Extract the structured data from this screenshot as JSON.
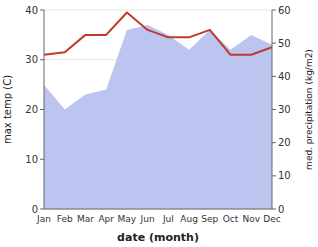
{
  "chart_data": {
    "type": "line",
    "xlabel": "date (month)",
    "ylabel": "max temp (C)",
    "y2label": "med. precipitation (kg/m2)",
    "categories": [
      "Jan",
      "Feb",
      "Mar",
      "Apr",
      "May",
      "Jun",
      "Jul",
      "Aug",
      "Sep",
      "Oct",
      "Nov",
      "Dec"
    ],
    "series": [
      {
        "type": "area",
        "axis": "y2",
        "color": "#bcc5f0",
        "values": [
          37.5,
          30,
          34.5,
          36,
          54,
          55.5,
          52.5,
          48,
          54,
          48,
          52.5,
          49.5
        ]
      },
      {
        "type": "line",
        "color": "#c0392b",
        "values": [
          31.0,
          31.5,
          35.0,
          35.0,
          39.5,
          36.0,
          34.5,
          34.5,
          36.0,
          31.0,
          31.0,
          32.5
        ]
      }
    ],
    "ylim": [
      0,
      40
    ],
    "yticks": [
      0,
      10,
      20,
      30,
      40
    ],
    "y2lim": [
      0,
      60
    ],
    "y2ticks": [
      0,
      10,
      20,
      30,
      40,
      50,
      60
    ],
    "grid": true
  }
}
